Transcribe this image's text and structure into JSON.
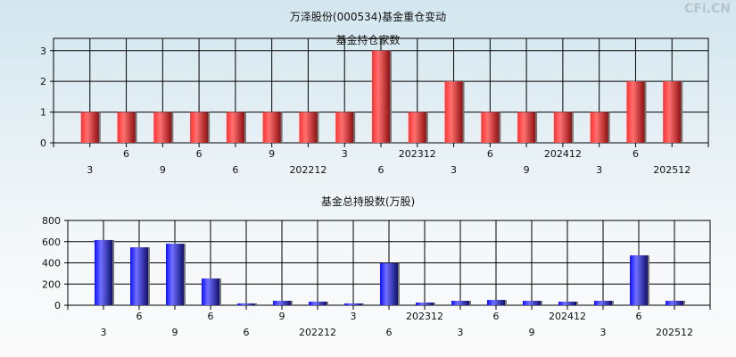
{
  "title": "万泽股份(000534)基金重仓变动",
  "watermark": "CFi.CN",
  "colors": {
    "top_bar": "#e02020",
    "bottom_bar": "#2a2ae0"
  },
  "chart_data": [
    {
      "type": "bar",
      "title": "基金持仓家数",
      "categories": [
        "3",
        "6",
        "9",
        "6",
        "6",
        "9",
        "202212",
        "3",
        "6",
        "202312",
        "3",
        "6",
        "9",
        "202412",
        "3",
        "6",
        "202512"
      ],
      "values": [
        1,
        1,
        1,
        1,
        1,
        1,
        1,
        1,
        3,
        1,
        2,
        1,
        1,
        1,
        1,
        2,
        2
      ],
      "yticks": [
        0,
        1,
        2,
        3
      ],
      "ylim": [
        0,
        3.4
      ],
      "grid": true
    },
    {
      "type": "bar",
      "title": "基金总持股数(万股)",
      "categories": [
        "3",
        "6",
        "9",
        "6",
        "6",
        "9",
        "202212",
        "3",
        "6",
        "202312",
        "3",
        "6",
        "9",
        "202412",
        "3",
        "6",
        "202512"
      ],
      "values": [
        615,
        546,
        580,
        252,
        17,
        42,
        34,
        17,
        397,
        25,
        42,
        50,
        42,
        34,
        42,
        470,
        42
      ],
      "yticks": [
        0,
        200,
        400,
        600,
        800
      ],
      "ylim": [
        0,
        800
      ],
      "grid": true
    }
  ]
}
